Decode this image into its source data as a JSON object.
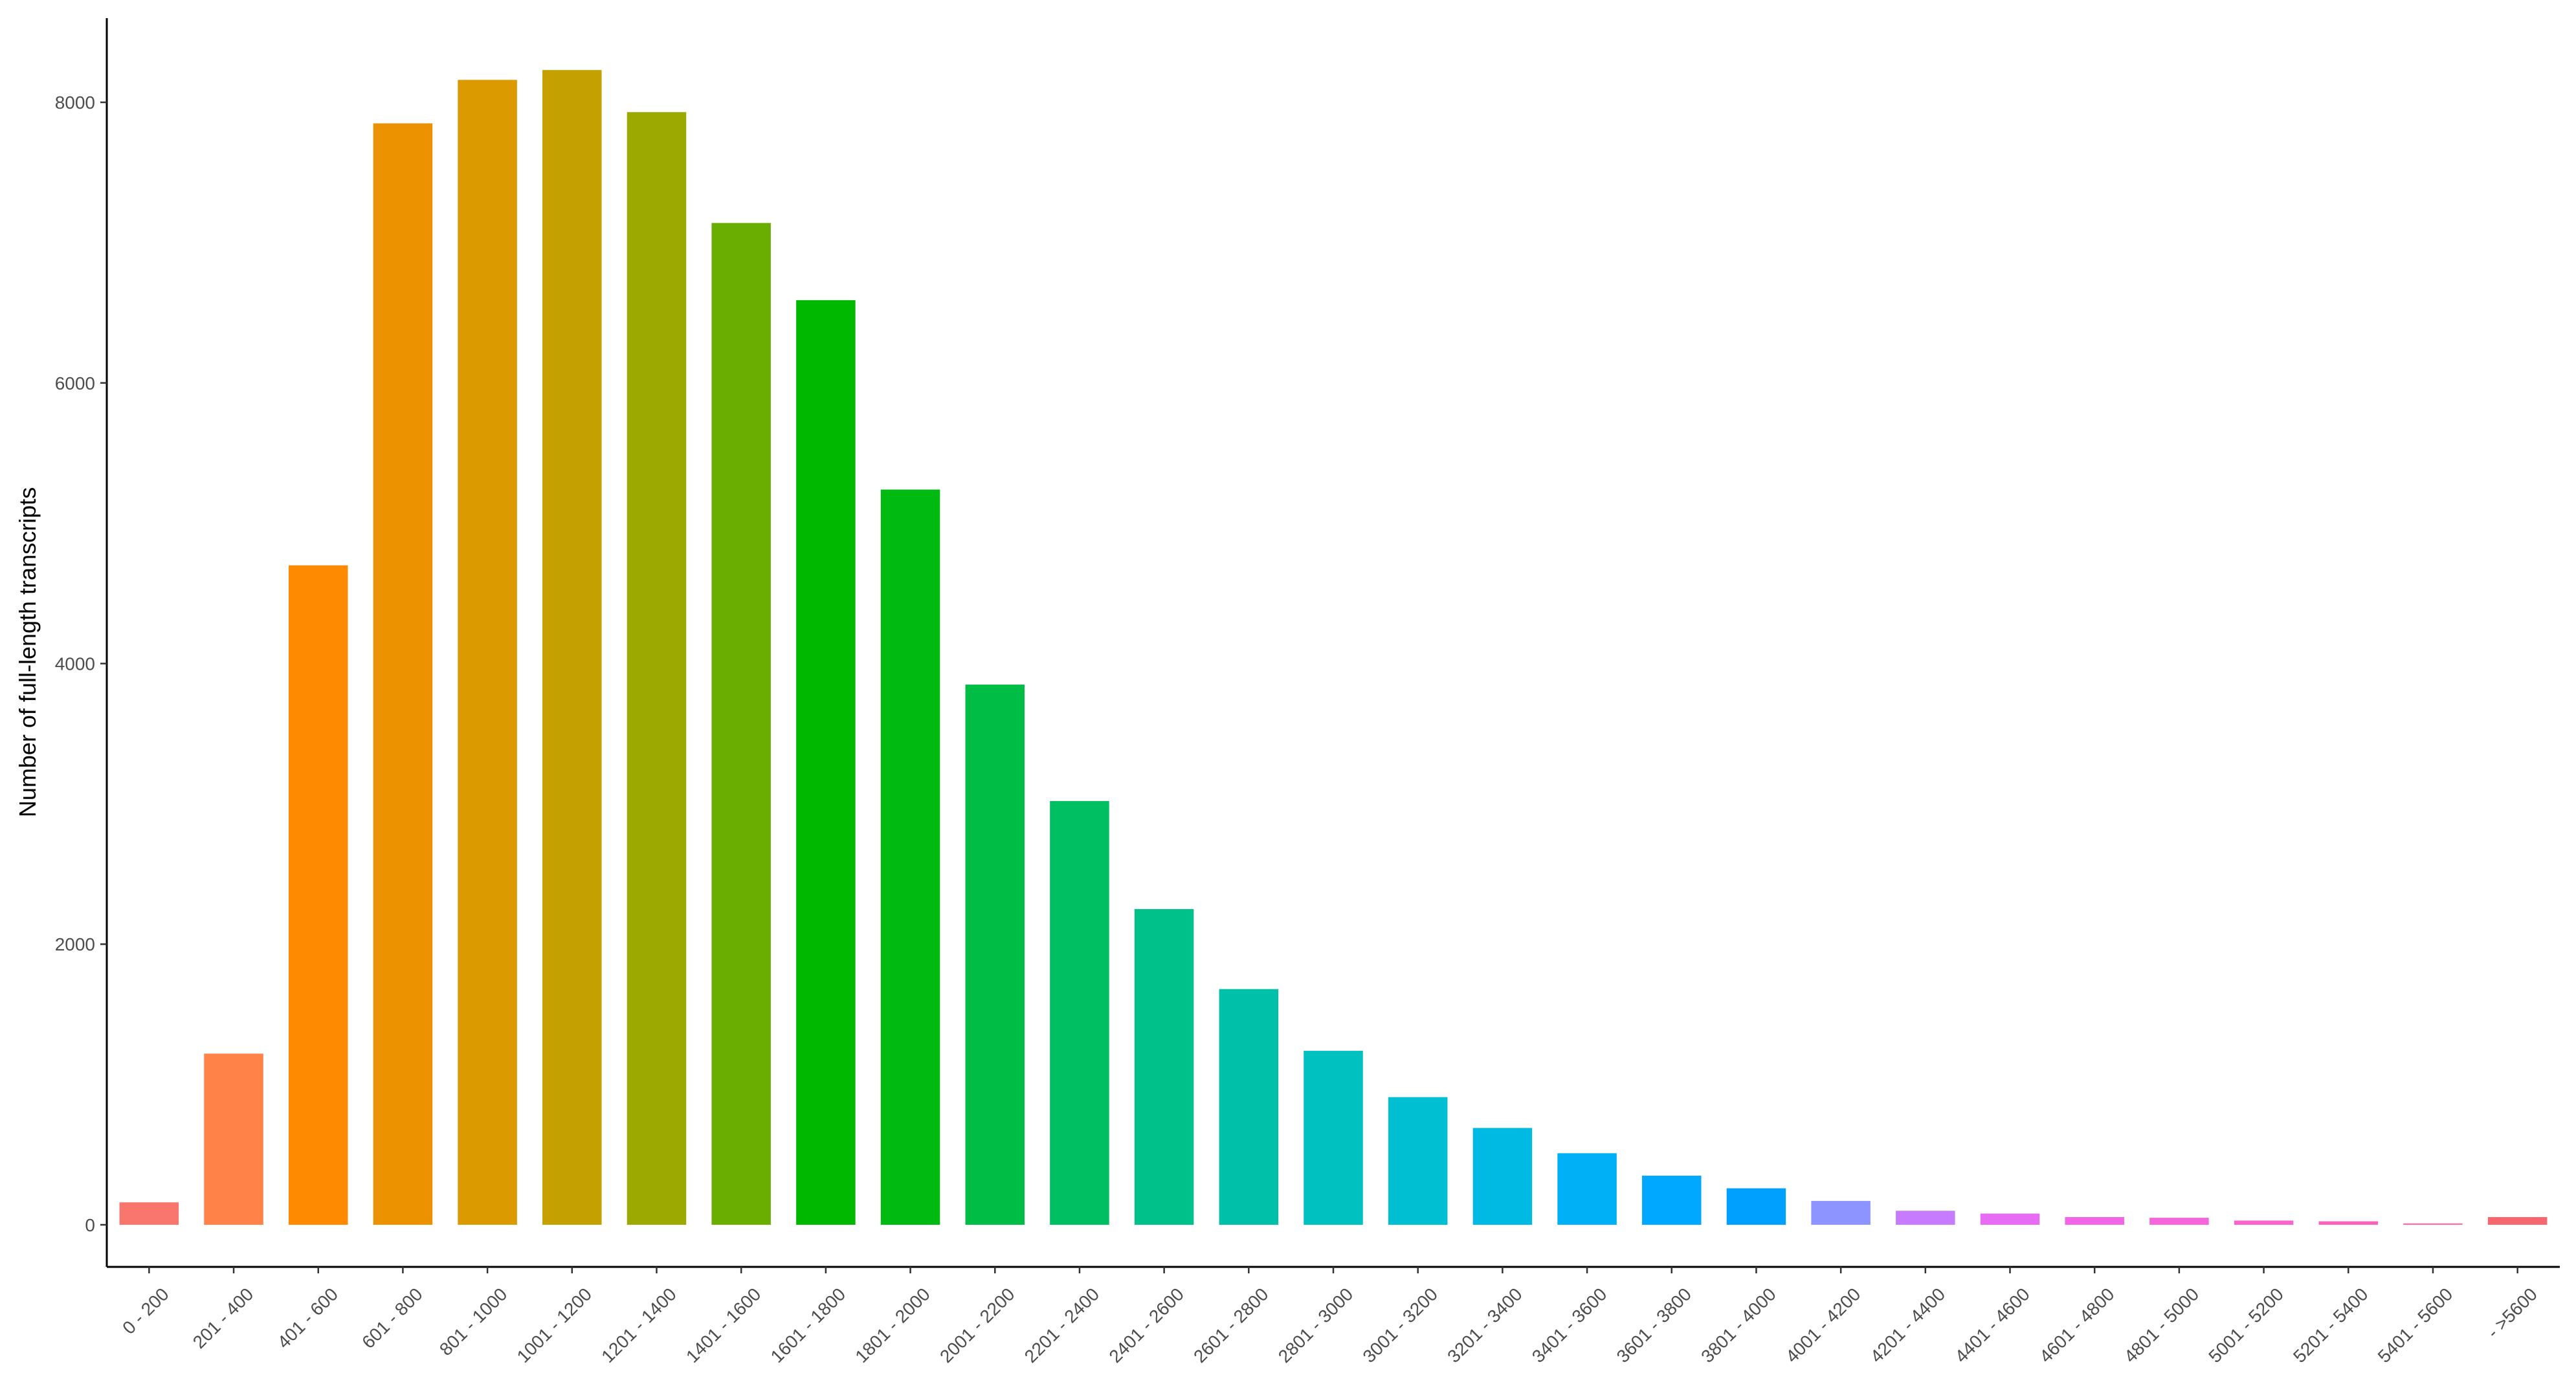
{
  "chart_data": {
    "type": "bar",
    "title": "",
    "xlabel": "",
    "ylabel": "Number of full-length transcripts",
    "ylim": [
      -300,
      8600
    ],
    "yticks": [
      0,
      2000,
      4000,
      6000,
      8000
    ],
    "grid": false,
    "legend": "none",
    "categories": [
      "0 - 200",
      "201 - 400",
      "401 - 600",
      "601 - 800",
      "801 - 1000",
      "1001 - 1200",
      "1201 - 1400",
      "1401 - 1600",
      "1601 - 1800",
      "1801 - 2000",
      "2001 - 2200",
      "2201 - 2400",
      "2401 - 2600",
      "2601 - 2800",
      "2801 - 3000",
      "3001 - 3200",
      "3201 - 3400",
      "3401 - 3600",
      "3601 - 3800",
      "3801 - 4000",
      "4001 - 4200",
      "4201 - 4400",
      "4401 - 4600",
      "4601 - 4800",
      "4801 - 5000",
      "5001 - 5200",
      "5201 - 5400",
      "5401 - 5600",
      "- >5600"
    ],
    "values": [
      160,
      1220,
      4700,
      7850,
      8160,
      8230,
      7930,
      7140,
      6590,
      5240,
      3850,
      3020,
      2250,
      1680,
      1240,
      910,
      690,
      510,
      350,
      260,
      170,
      100,
      80,
      55,
      50,
      30,
      25,
      10,
      55
    ],
    "colors": [
      "#F8766D",
      "#FF8248",
      "#FD8A00",
      "#EC9200",
      "#DB9A00",
      "#C4A000",
      "#9BA900",
      "#69AE00",
      "#00B800",
      "#00BA12",
      "#00BD45",
      "#00BF62",
      "#00C18A",
      "#00C0A9",
      "#00C0C0",
      "#00BFD3",
      "#00BAE3",
      "#00B0F6",
      "#00A8FF",
      "#00A0FF",
      "#8D94FF",
      "#C77CFF",
      "#E76BF3",
      "#F066E6",
      "#F565DB",
      "#FA63CC",
      "#FC62BA",
      "#FE6BA5",
      "#F8676F"
    ]
  }
}
